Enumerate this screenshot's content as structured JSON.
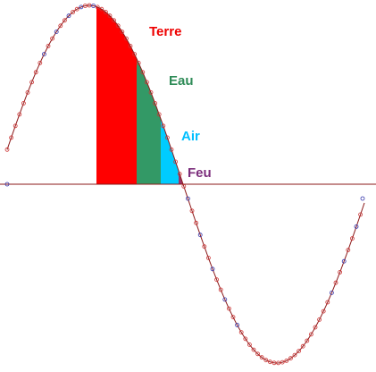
{
  "regions": [
    {
      "label": "Terre",
      "color": "#ff0000",
      "text_color": "#ee0000"
    },
    {
      "label": "Eau",
      "color": "#339966",
      "text_color": "#2e8b57"
    },
    {
      "label": "Air",
      "color": "#00ccff",
      "text_color": "#00bfff"
    },
    {
      "label": "Feu",
      "color": "#993366",
      "text_color": "#7b2d7b"
    }
  ]
}
